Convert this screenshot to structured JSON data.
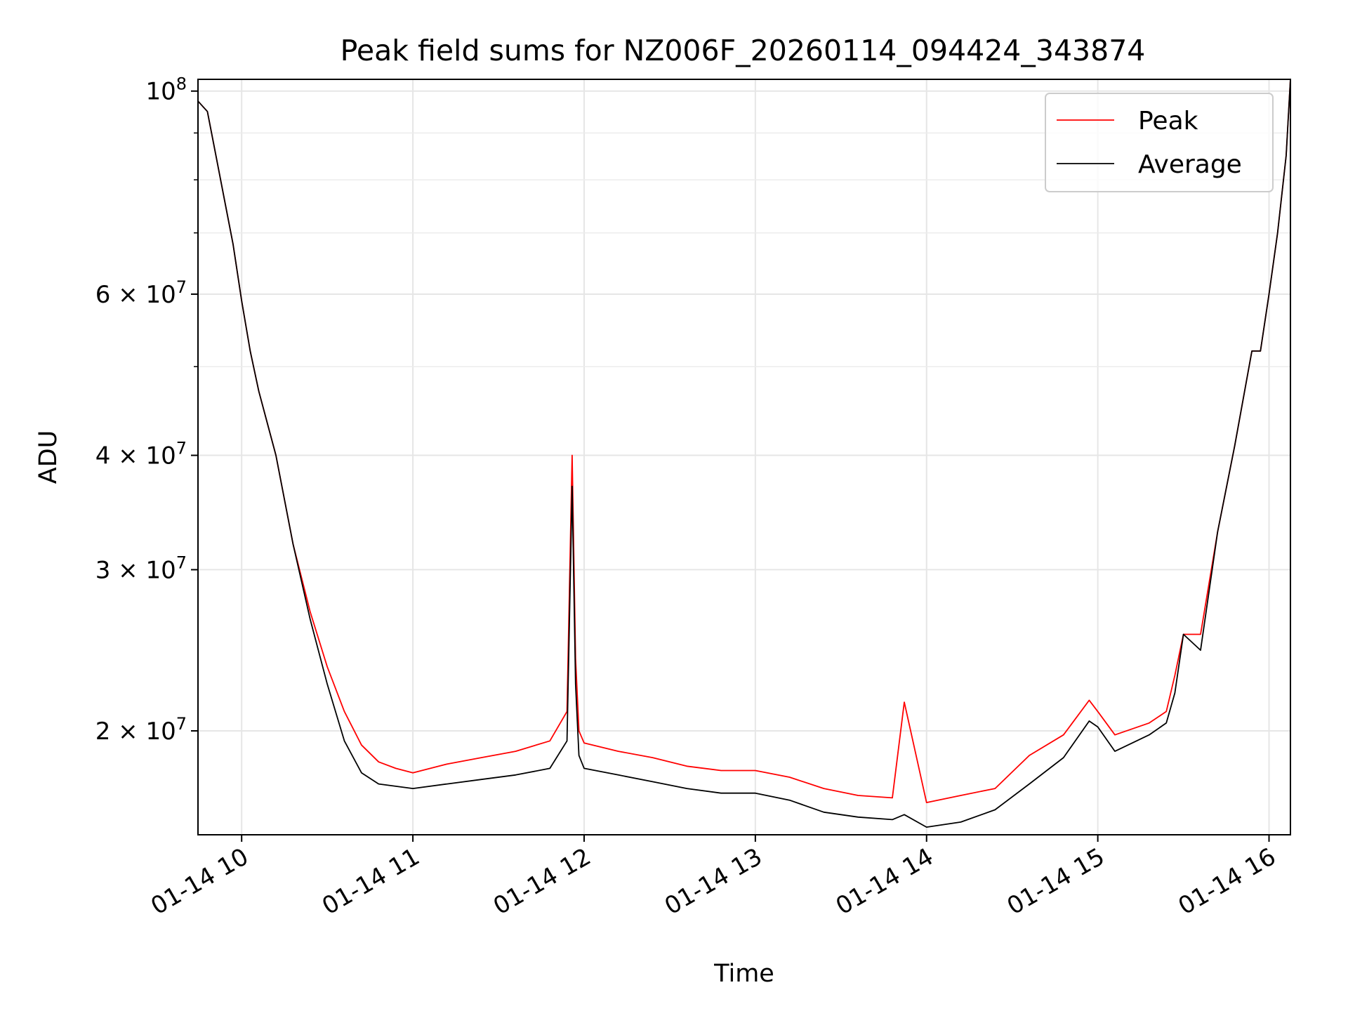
{
  "chart_data": {
    "type": "line",
    "title": "Peak field sums for NZ006F_20260114_094424_343874",
    "xlabel": "Time",
    "ylabel": "ADU",
    "y_scale": "log",
    "x_unit": "hours",
    "xlim": [
      9.745,
      16.125
    ],
    "ylim": [
      15400000,
      103000000
    ],
    "grid": true,
    "legend_position": "upper right",
    "x_ticks": [
      {
        "value": 10,
        "label": "01-14 10"
      },
      {
        "value": 11,
        "label": "01-14 11"
      },
      {
        "value": 12,
        "label": "01-14 12"
      },
      {
        "value": 13,
        "label": "01-14 13"
      },
      {
        "value": 14,
        "label": "01-14 14"
      },
      {
        "value": 15,
        "label": "01-14 15"
      },
      {
        "value": 16,
        "label": "01-14 16"
      }
    ],
    "y_ticks": [
      {
        "value": 100000000,
        "base": "10",
        "exp": "8"
      },
      {
        "value": 60000000,
        "base": "6 × 10",
        "exp": "7"
      },
      {
        "value": 40000000,
        "base": "4 × 10",
        "exp": "7"
      },
      {
        "value": 30000000,
        "base": "3 × 10",
        "exp": "7"
      },
      {
        "value": 20000000,
        "base": "2 × 10",
        "exp": "7"
      }
    ],
    "y_minor_ticks": [
      90000000,
      80000000,
      70000000,
      50000000
    ],
    "x_values": [
      9.745,
      9.8,
      9.85,
      9.9,
      9.95,
      10.0,
      10.05,
      10.1,
      10.2,
      10.3,
      10.4,
      10.5,
      10.6,
      10.7,
      10.8,
      10.9,
      11.0,
      11.2,
      11.4,
      11.6,
      11.8,
      11.9,
      11.93,
      11.95,
      11.97,
      12.0,
      12.2,
      12.4,
      12.6,
      12.8,
      13.0,
      13.2,
      13.4,
      13.6,
      13.8,
      13.87,
      14.0,
      14.2,
      14.4,
      14.6,
      14.8,
      14.95,
      15.0,
      15.1,
      15.3,
      15.4,
      15.45,
      15.5,
      15.6,
      15.7,
      15.8,
      15.9,
      15.95,
      16.0,
      16.05,
      16.1,
      16.125
    ],
    "series": [
      {
        "name": "Peak",
        "color": "#ff0000",
        "values": [
          97500000,
          95000000,
          85000000,
          76000000,
          68000000,
          59000000,
          52000000,
          47000000,
          40000000,
          32000000,
          27000000,
          23500000,
          21000000,
          19300000,
          18500000,
          18200000,
          18000000,
          18400000,
          18700000,
          19000000,
          19500000,
          21000000,
          40000000,
          24000000,
          20000000,
          19400000,
          19000000,
          18700000,
          18300000,
          18100000,
          18100000,
          17800000,
          17300000,
          17000000,
          16900000,
          21500000,
          16700000,
          17000000,
          17300000,
          18800000,
          19800000,
          21600000,
          21000000,
          19800000,
          20400000,
          21000000,
          23000000,
          25500000,
          25500000,
          33000000,
          41000000,
          52000000,
          52000000,
          60000000,
          70000000,
          85000000,
          103000000
        ]
      },
      {
        "name": "Average",
        "color": "#000000",
        "values": [
          97500000,
          95000000,
          85000000,
          76000000,
          68000000,
          59000000,
          52000000,
          47000000,
          40000000,
          32000000,
          26500000,
          22500000,
          19500000,
          18000000,
          17500000,
          17400000,
          17300000,
          17500000,
          17700000,
          17900000,
          18200000,
          19500000,
          37000000,
          22500000,
          18800000,
          18200000,
          17900000,
          17600000,
          17300000,
          17100000,
          17100000,
          16800000,
          16300000,
          16100000,
          16000000,
          16200000,
          15700000,
          15900000,
          16400000,
          17500000,
          18700000,
          20500000,
          20200000,
          19000000,
          19800000,
          20400000,
          22000000,
          25500000,
          24500000,
          33000000,
          41000000,
          52000000,
          52000000,
          60000000,
          70000000,
          85000000,
          103000000
        ]
      }
    ]
  }
}
